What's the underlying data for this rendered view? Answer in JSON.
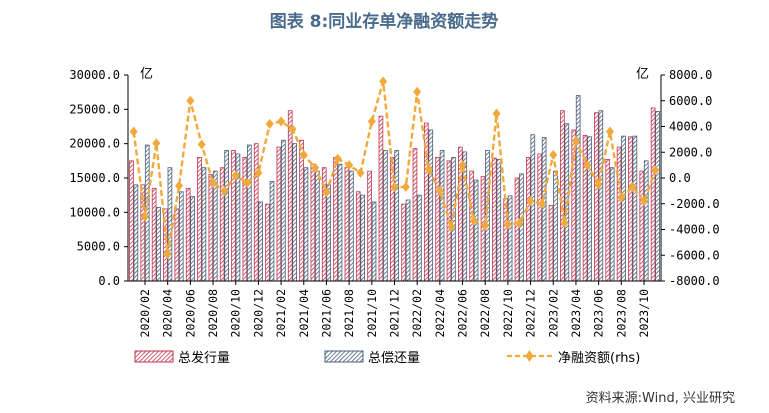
{
  "title": "图表 8:同业存单净融资额走势",
  "source": "资料来源:Wind, 兴业研究",
  "colors": {
    "title": "#4a6b8c",
    "issue_border": "#c0354f",
    "issue_hatch": "#c0354f",
    "repay_border": "#4a5f78",
    "repay_hatch": "#4a5f78",
    "net_line": "#f2a93b",
    "net_marker": "#f2a93b"
  },
  "chart_data": {
    "type": "bar",
    "left_unit": "亿",
    "right_unit": "亿",
    "ylim_left": [
      0,
      30000
    ],
    "yticks_left": [
      "30000.0",
      "25000.0",
      "20000.0",
      "15000.0",
      "10000.0",
      "5000.0",
      "0.0"
    ],
    "ylim_right": [
      -8000,
      8000
    ],
    "yticks_right": [
      "8000.0",
      "6000.0",
      "4000.0",
      "2000.0",
      "0.0",
      "-2000.0",
      "-4000.0",
      "-6000.0",
      "-8000.0"
    ],
    "x_tick_labels": [
      "2020/02",
      "2020/04",
      "2020/06",
      "2020/08",
      "2020/10",
      "2020/12",
      "2021/02",
      "2021/04",
      "2021/06",
      "2021/08",
      "2021/10",
      "2021/12",
      "2022/02",
      "2022/04",
      "2022/06",
      "2022/08",
      "2022/10",
      "2022/12",
      "2023/02",
      "2023/04",
      "2023/06",
      "2023/08",
      "2023/10"
    ],
    "categories": [
      "2020/01",
      "2020/02",
      "2020/03",
      "2020/04",
      "2020/05",
      "2020/06",
      "2020/07",
      "2020/08",
      "2020/09",
      "2020/10",
      "2020/11",
      "2020/12",
      "2021/01",
      "2021/02",
      "2021/03",
      "2021/04",
      "2021/05",
      "2021/06",
      "2021/07",
      "2021/08",
      "2021/09",
      "2021/10",
      "2021/11",
      "2021/12",
      "2022/01",
      "2022/02",
      "2022/03",
      "2022/04",
      "2022/05",
      "2022/06",
      "2022/07",
      "2022/08",
      "2022/09",
      "2022/10",
      "2022/11",
      "2022/12",
      "2023/01",
      "2023/02",
      "2023/03",
      "2023/04",
      "2023/05",
      "2023/06",
      "2023/07",
      "2023/08",
      "2023/09",
      "2023/10",
      "2023/11"
    ],
    "series": [
      {
        "name": "总发行量",
        "axis": "left",
        "kind": "bar",
        "values": [
          17500,
          14000,
          13500,
          10500,
          10500,
          13500,
          18000,
          15500,
          16500,
          19000,
          18000,
          20000,
          11200,
          19500,
          24800,
          20500,
          17000,
          16500,
          18000,
          16500,
          13000,
          16000,
          24000,
          18000,
          11200,
          19300,
          23000,
          18000,
          17500,
          19500,
          16000,
          15200,
          17900,
          12000,
          15000,
          18000,
          18500,
          11000,
          24800,
          22000,
          21200,
          24500,
          17700,
          19500,
          21000,
          16000,
          25200
        ]
      },
      {
        "name": "总偿还量",
        "axis": "left",
        "kind": "bar",
        "values": [
          14000,
          19800,
          10700,
          16500,
          13000,
          12300,
          16500,
          16000,
          19000,
          18500,
          19800,
          11500,
          14500,
          20500,
          20000,
          16500,
          16000,
          14000,
          17000,
          16000,
          12500,
          11500,
          19000,
          19000,
          11800,
          12500,
          22000,
          19000,
          18000,
          18800,
          14700,
          19000,
          17700,
          12400,
          15600,
          21300,
          20900,
          16000,
          22900,
          27000,
          21000,
          24800,
          16500,
          21100,
          21100,
          17500,
          24700
        ]
      },
      {
        "name": "净融资额(rhs)",
        "axis": "right",
        "kind": "line",
        "values": [
          3600,
          -3000,
          2700,
          -5900,
          -600,
          6000,
          2600,
          -400,
          -1000,
          200,
          -400,
          400,
          4200,
          4400,
          3800,
          1800,
          800,
          -1100,
          1500,
          1000,
          400,
          4400,
          7500,
          -700,
          -700,
          6700,
          700,
          -1000,
          -3800,
          1000,
          -3300,
          -3700,
          5000,
          -3600,
          -3500,
          -1800,
          -2000,
          1800,
          -3500,
          2900,
          1000,
          -500,
          3600,
          -1500,
          -700,
          -1800,
          600
        ]
      }
    ]
  }
}
